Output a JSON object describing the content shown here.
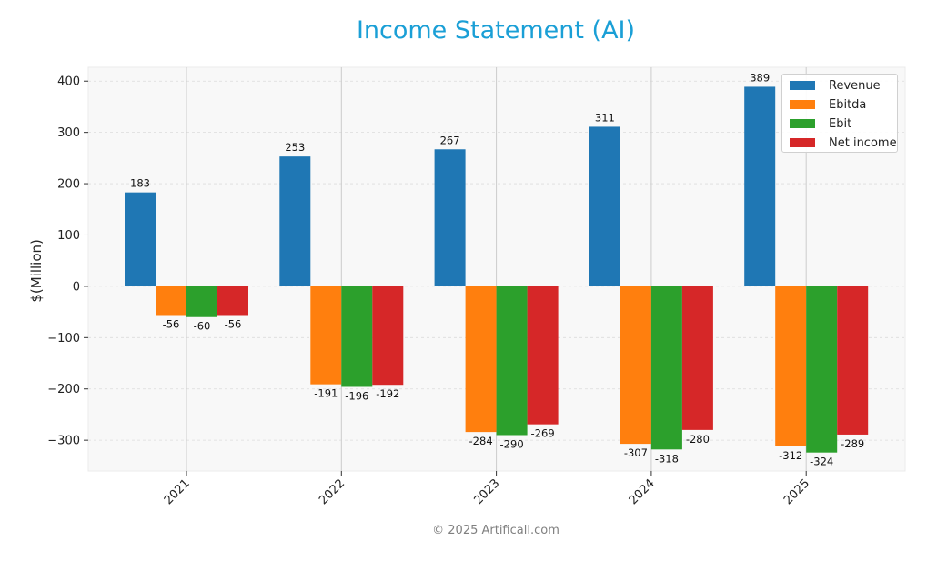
{
  "chart_data": {
    "type": "bar",
    "title": "Income Statement (AI)",
    "xlabel": "",
    "ylabel": "$(Million)",
    "ylim": [
      -360,
      427
    ],
    "yticks": [
      400,
      300,
      200,
      100,
      0,
      -100,
      -200,
      -300
    ],
    "ytick_labels": [
      "400",
      "300",
      "200",
      "100",
      "0",
      "−100",
      "−200",
      "−300"
    ],
    "categories": [
      "2021",
      "2022",
      "2023",
      "2024",
      "2025"
    ],
    "series": [
      {
        "name": "Revenue",
        "color": "#1f77b4",
        "values": [
          183,
          253,
          267,
          311,
          389
        ]
      },
      {
        "name": "Ebitda",
        "color": "#ff7f0e",
        "values": [
          -56,
          -191,
          -284,
          -307,
          -312
        ]
      },
      {
        "name": "Ebit",
        "color": "#2ca02c",
        "values": [
          -60,
          -196,
          -290,
          -318,
          -324
        ]
      },
      {
        "name": "Net income",
        "color": "#d62728",
        "values": [
          -56,
          -192,
          -269,
          -280,
          -289
        ]
      }
    ],
    "grid": true,
    "legend_position": "upper right",
    "data_labels": true,
    "xtick_rotation": 45
  },
  "header": {
    "title": "Income Statement (AI)"
  },
  "footer": {
    "text": "© 2025 Artificall.com"
  },
  "colors": {
    "title": "#1a9fd6",
    "plot_bg": "#f8f8f8"
  }
}
